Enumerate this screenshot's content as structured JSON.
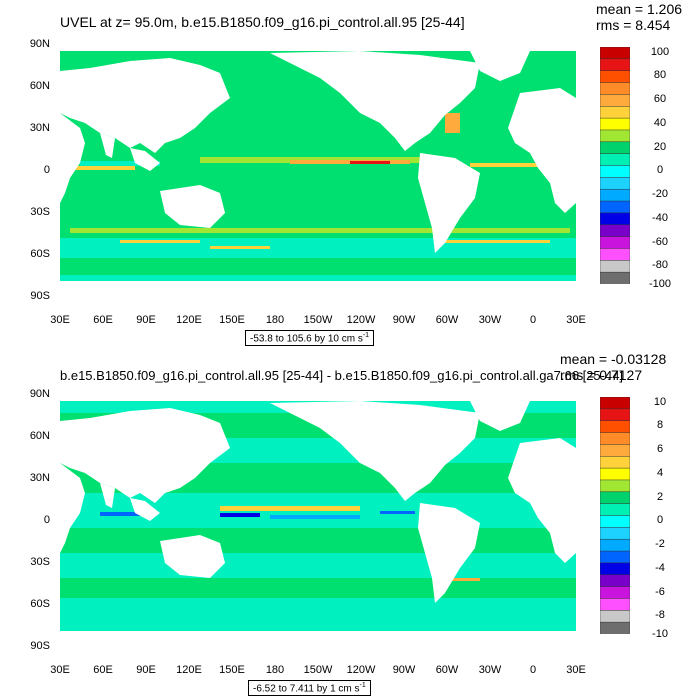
{
  "panel1": {
    "title": "UVEL at z=  95.0m, b.e15.B1850.f09_g16.pi_control.all.95 [25-44]",
    "mean": "mean = 1.206",
    "rms": "rms = 8.454",
    "range_text": "-53.8 to 105.6 by 10 cm s",
    "range_sup": "-1",
    "colorbar_labels": [
      "100",
      "80",
      "60",
      "40",
      "20",
      "0",
      "-20",
      "-40",
      "-60",
      "-80",
      "-100"
    ]
  },
  "panel2": {
    "title": "b.e15.B1850.f09_g16.pi_control.all.95 [25-44] - b.e15.B1850.f09_g16.pi_control.all.ga7.66 [25-44]",
    "mean": "mean = -0.03128",
    "rms": "rms = 0.7127",
    "range_text": "-6.52 to 7.411 by 1 cm s",
    "range_sup": "-1",
    "colorbar_labels": [
      "10",
      "8",
      "6",
      "4",
      "2",
      "0",
      "-2",
      "-4",
      "-6",
      "-8",
      "-10"
    ]
  },
  "axes": {
    "y_labels": [
      "90N",
      "60N",
      "30N",
      "0",
      "30S",
      "60S",
      "90S"
    ],
    "x_labels": [
      "30E",
      "60E",
      "90E",
      "120E",
      "150E",
      "180",
      "150W",
      "120W",
      "90W",
      "60W",
      "30W",
      "0",
      "30E"
    ]
  },
  "colors": {
    "scale": [
      "#c80000",
      "#e61414",
      "#ff5000",
      "#ff8c28",
      "#ffaa3c",
      "#ffd23c",
      "#ffff00",
      "#a0e632",
      "#00d26e",
      "#00f0b4",
      "#00ffff",
      "#1ed2ff",
      "#00aaff",
      "#0064ff",
      "#0000e6",
      "#7800c8",
      "#c814dc",
      "#ff50ff",
      "#c8c8c8",
      "#6e6e6e"
    ],
    "ocean_main": "#00e070",
    "ocean_alt": "#00f0c0",
    "land": "#ffffff"
  }
}
